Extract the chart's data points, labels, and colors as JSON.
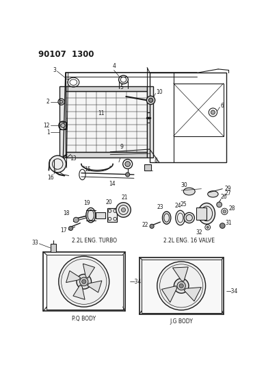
{
  "bg_color": "#ffffff",
  "line_color": "#1a1a1a",
  "fig_width": 3.89,
  "fig_height": 5.33,
  "dpi": 100,
  "title": "90107  1300",
  "label_turbo": "2.2L ENG. TURBO",
  "label_16v": "2.2L ENG. 16 VALVE",
  "label_pq": "P.Q BODY",
  "label_jg": "J.G BODY"
}
